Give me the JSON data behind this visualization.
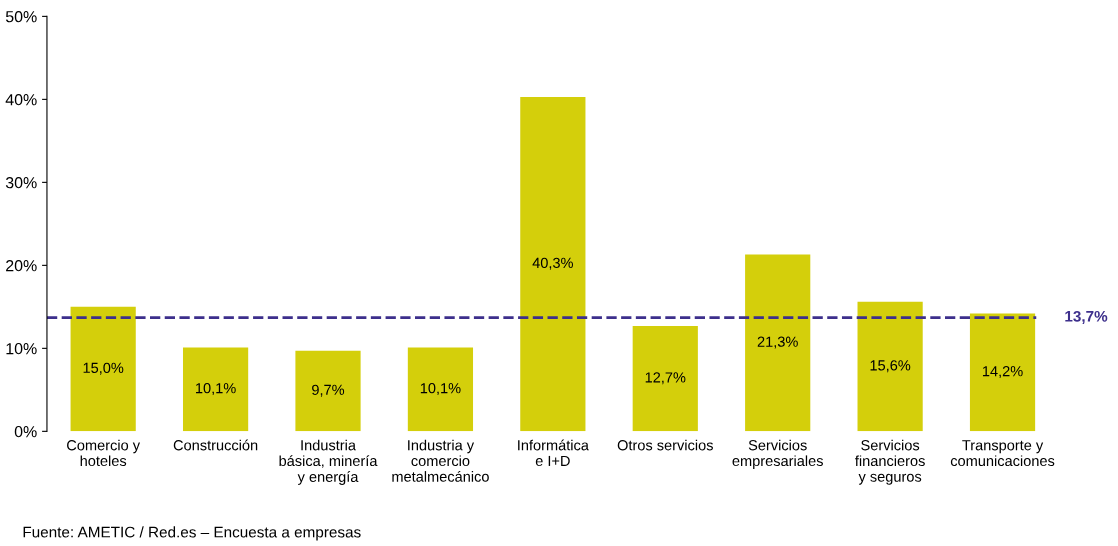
{
  "chart_data": {
    "type": "bar",
    "categories": [
      "Comercio y\nhoteles",
      "Construcción",
      "Industria\nbásica, minería\ny energía",
      "Industria y\ncomercio\nmetalmecánico",
      "Informática\ne I+D",
      "Otros servicios",
      "Servicios\nempresariales",
      "Servicios\nfinancieros\ny seguros",
      "Transporte y\ncomunicaciones"
    ],
    "values": [
      15.0,
      10.1,
      9.7,
      10.1,
      40.3,
      12.7,
      21.3,
      15.6,
      14.2
    ],
    "value_labels": [
      "15,0%",
      "10,1%",
      "9,7%",
      "10,1%",
      "40,3%",
      "12,7%",
      "21,3%",
      "15,6%",
      "14,2%"
    ],
    "color": "#d4cf0b",
    "ylim": [
      0,
      50
    ],
    "yticks": [
      {
        "value": 0,
        "label": "0%"
      },
      {
        "value": 10,
        "label": "10%"
      },
      {
        "value": 20,
        "label": "20%"
      },
      {
        "value": 30,
        "label": "30%"
      },
      {
        "value": 40,
        "label": "40%"
      },
      {
        "value": 50,
        "label": "50%"
      }
    ],
    "ref_lines": [
      {
        "axis": "y",
        "value": 13.7,
        "label": "13,7%",
        "color": "#3d2f8c",
        "line_style": "dashed"
      }
    ],
    "annotations": [
      "Fuente: AMETIC / Red.es – Encuesta a empresas"
    ],
    "grid": false
  }
}
